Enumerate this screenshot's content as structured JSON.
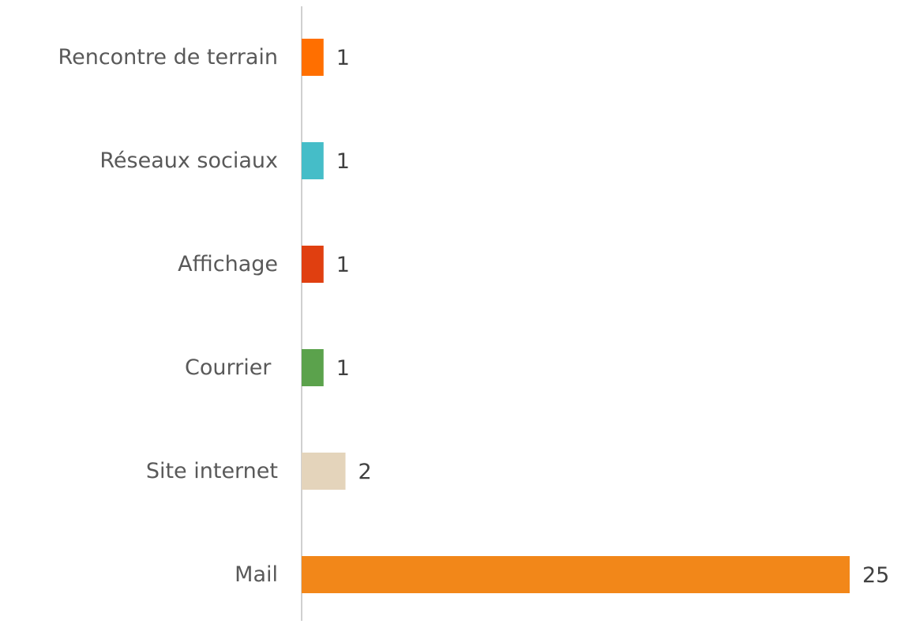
{
  "chart_data": {
    "type": "hbar",
    "categories": [
      "Rencontre de terrain",
      "Réseaux sociaux",
      "Affichage",
      "Courrier ",
      "Site internet",
      "Mail"
    ],
    "values": [
      1,
      1,
      1,
      1,
      2,
      25
    ],
    "colors": [
      "#ff6f00",
      "#45bdc8",
      "#e03f10",
      "#5ba24c",
      "#e4d4bb",
      "#f28719"
    ]
  }
}
